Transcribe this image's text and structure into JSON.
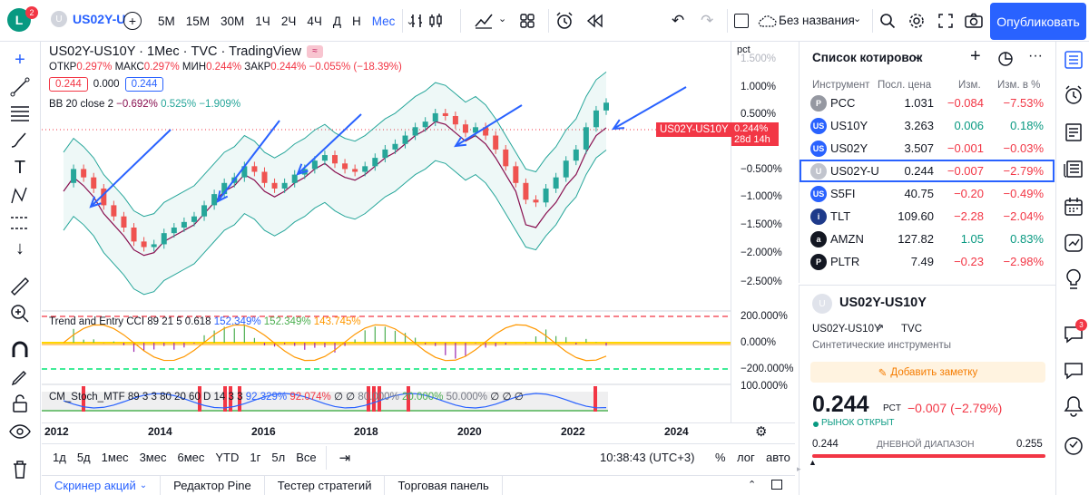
{
  "topbar": {
    "avatar_letter": "L",
    "notif_count": "2",
    "symbol": "US02Y-U",
    "intervals": [
      "5М",
      "15М",
      "30М",
      "1Ч",
      "2Ч",
      "4Ч",
      "Д",
      "Н",
      "Мес"
    ],
    "active_interval": "Мес",
    "layout_name": "Без названия",
    "publish": "Опубликовать"
  },
  "legend": {
    "title": "US02Y-US10Y · 1Мес · TVC · TradingView",
    "ohlc": {
      "o_label": "ОТКР",
      "o": "0.297%",
      "h_label": "МАКС",
      "h": "0.297%",
      "l_label": "МИН",
      "l": "0.244%",
      "c_label": "ЗАКР",
      "c": "0.244%",
      "chg": "−0.055% (−18.39%)"
    },
    "bid": "0.244",
    "spread": "0.000",
    "ask": "0.244",
    "bb": {
      "label": "BB 20 close 2",
      "v1": "−0.692%",
      "v2": "0.525%",
      "v3": "−1.909%"
    },
    "cci": {
      "label": "Trend and Entry CCI 89 21 5 0.618",
      "v1": "152.349%",
      "v2": "152.349%",
      "v3": "143.745%"
    },
    "stoch": {
      "label": "CM_Stoch_MTF 89 3 3 80 20 60 D 14 3 3",
      "v1": "92.329%",
      "v2": "92.074%",
      "v3": "∅",
      "v4": "∅",
      "v5": "80.000%",
      "v6": "20.000%",
      "v7": "50.000%",
      "v8": "∅",
      "v9": "∅",
      "v10": "∅"
    }
  },
  "price_scale": {
    "unit": "pct",
    "labels": [
      "1.500%",
      "1.000%",
      "0.500%",
      "−0.500%",
      "−1.000%",
      "−1.500%",
      "−2.000%",
      "−2.500%"
    ],
    "ind_labels": [
      "200.000%",
      "0.000%",
      "−200.000%",
      "100.000%"
    ],
    "tag_symbol": "US02Y-US10Y",
    "tag_price": "0.244%",
    "tag_time": "28d 14h"
  },
  "time_axis": [
    "2012",
    "2014",
    "2016",
    "2018",
    "2020",
    "2022",
    "2024"
  ],
  "bottom": {
    "ranges": [
      "1д",
      "5д",
      "1мес",
      "3мес",
      "6мес",
      "YTD",
      "1г",
      "5л",
      "Все"
    ],
    "clock": "10:38:43 (UTC+3)",
    "pct": "%",
    "log": "лог",
    "auto": "авто"
  },
  "tabs": [
    "Скринер акций",
    "Редактор Pine",
    "Тестер стратегий",
    "Торговая панель"
  ],
  "watchlist": {
    "title": "Список котировок",
    "headers": {
      "sym": "Инструмент",
      "last": "Посл. цена",
      "chg": "Изм.",
      "pct": "Изм. в %"
    },
    "rows": [
      {
        "sym": "PCC",
        "last": "1.031",
        "chg": "−0.084",
        "pct": "−7.53%",
        "dir": "neg",
        "color": "#9598a1",
        "logo": "P"
      },
      {
        "sym": "US10Y",
        "last": "3.263",
        "chg": "0.006",
        "pct": "0.18%",
        "dir": "pos",
        "color": "#2962ff",
        "logo": "US"
      },
      {
        "sym": "US02Y",
        "last": "3.507",
        "chg": "−0.001",
        "pct": "−0.03%",
        "dir": "neg",
        "color": "#2962ff",
        "logo": "US"
      },
      {
        "sym": "US02Y-U",
        "last": "0.244",
        "chg": "−0.007",
        "pct": "−2.79%",
        "dir": "neg",
        "color": "#c1c4cd",
        "logo": "U"
      },
      {
        "sym": "S5FI",
        "last": "40.75",
        "chg": "−0.20",
        "pct": "−0.49%",
        "dir": "neg",
        "color": "#2962ff",
        "logo": "US"
      },
      {
        "sym": "TLT",
        "last": "109.60",
        "chg": "−2.28",
        "pct": "−2.04%",
        "dir": "neg",
        "color": "#1e3a8a",
        "logo": "i"
      },
      {
        "sym": "AMZN",
        "last": "127.82",
        "chg": "1.05",
        "pct": "0.83%",
        "dir": "pos",
        "color": "#131722",
        "logo": "a"
      },
      {
        "sym": "PLTR",
        "last": "7.49",
        "chg": "−0.23",
        "pct": "−2.98%",
        "dir": "neg",
        "color": "#131722",
        "logo": "P"
      }
    ]
  },
  "details": {
    "symbol": "US02Y-US10Y",
    "sub_symbol": "US02Y-US10Y",
    "exchange": "TVC",
    "category": "Синтетические инструменты",
    "add_note": "Добавить заметку",
    "price": "0.244",
    "unit": "PCT",
    "chg": "−0.007 (−2.79%)",
    "status": "РЫНОК ОТКРЫТ",
    "range_low": "0.244",
    "range_label": "ДНЕВНОЙ ДИАПАЗОН",
    "range_high": "0.255"
  }
}
